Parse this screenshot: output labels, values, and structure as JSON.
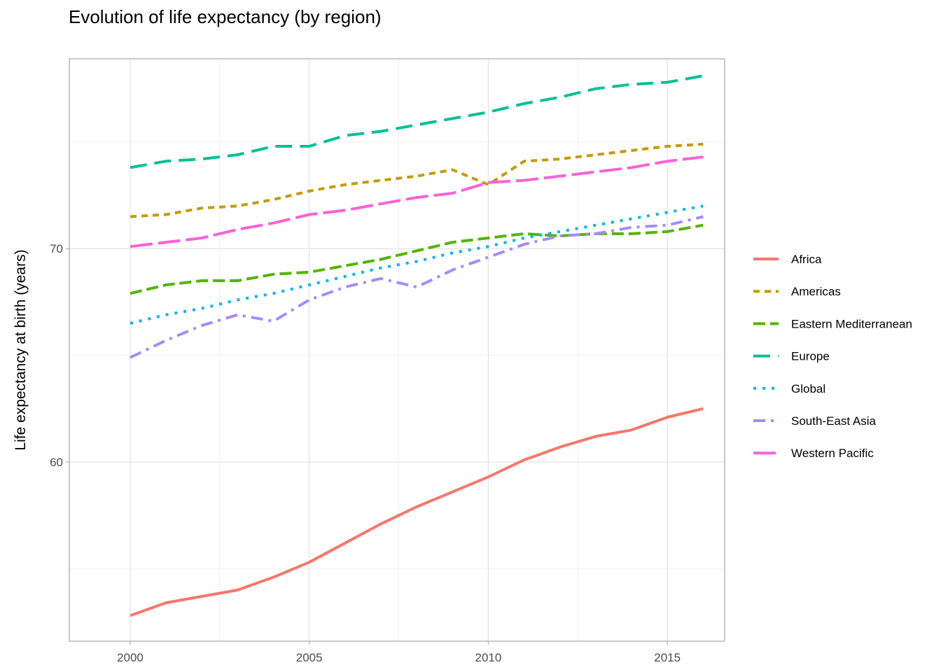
{
  "chart_data": {
    "type": "line",
    "title": "Evolution of life expectancy (by region)",
    "xlabel": "",
    "ylabel": "Life expectancy at birth (years)",
    "x": [
      2000,
      2001,
      2002,
      2003,
      2004,
      2005,
      2006,
      2007,
      2008,
      2009,
      2010,
      2011,
      2012,
      2013,
      2014,
      2015,
      2016
    ],
    "xlim": [
      1998.3,
      2016.6
    ],
    "ylim": [
      51.6,
      78.9
    ],
    "x_ticks": [
      2000,
      2005,
      2010,
      2015
    ],
    "x_tick_labels": [
      "2000",
      "2005",
      "2010",
      "2015"
    ],
    "y_ticks": [
      60,
      70
    ],
    "y_tick_labels": [
      "60",
      "70"
    ],
    "y_minor_ticks": [
      55,
      65,
      75
    ],
    "grid": true,
    "legend_position": "right",
    "series": [
      {
        "name": "Africa",
        "color": "#F8766D",
        "dash": "solid",
        "values": [
          52.8,
          53.4,
          53.7,
          54.0,
          54.6,
          55.3,
          56.2,
          57.1,
          57.9,
          58.6,
          59.3,
          60.1,
          60.7,
          61.2,
          61.5,
          62.1,
          62.5
        ]
      },
      {
        "name": "Americas",
        "color": "#C49A00",
        "dash": "short-dash",
        "values": [
          71.5,
          71.6,
          71.9,
          72.0,
          72.3,
          72.7,
          73.0,
          73.2,
          73.4,
          73.7,
          73.0,
          74.1,
          74.2,
          74.4,
          74.6,
          74.8,
          74.9
        ]
      },
      {
        "name": "Eastern Mediterranean",
        "color": "#53B400",
        "dash": "long-dash",
        "values": [
          67.9,
          68.3,
          68.5,
          68.5,
          68.8,
          68.9,
          69.2,
          69.5,
          69.9,
          70.3,
          70.5,
          70.7,
          70.6,
          70.7,
          70.7,
          70.8,
          71.1
        ]
      },
      {
        "name": "Europe",
        "color": "#00C094",
        "dash": "long-dash-gap",
        "values": [
          73.8,
          74.1,
          74.2,
          74.4,
          74.8,
          74.8,
          75.3,
          75.5,
          75.8,
          76.1,
          76.4,
          76.8,
          77.1,
          77.5,
          77.7,
          77.8,
          78.1
        ]
      },
      {
        "name": "Global",
        "color": "#00B6EB",
        "dash": "dotted",
        "values": [
          66.5,
          66.9,
          67.2,
          67.6,
          67.9,
          68.3,
          68.7,
          69.1,
          69.4,
          69.8,
          70.1,
          70.5,
          70.8,
          71.1,
          71.4,
          71.7,
          72.0
        ]
      },
      {
        "name": "South-East Asia",
        "color": "#A58AFF",
        "dash": "dash-dot",
        "values": [
          64.9,
          65.7,
          66.4,
          66.9,
          66.6,
          67.6,
          68.2,
          68.6,
          68.2,
          69.0,
          69.6,
          70.2,
          70.6,
          70.7,
          71.0,
          71.1,
          71.5
        ]
      },
      {
        "name": "Western Pacific",
        "color": "#FB61D7",
        "dash": "long-dash-short-gap",
        "values": [
          70.1,
          70.3,
          70.5,
          70.9,
          71.2,
          71.6,
          71.8,
          72.1,
          72.4,
          72.6,
          73.1,
          73.2,
          73.4,
          73.6,
          73.8,
          74.1,
          74.3
        ]
      }
    ]
  }
}
